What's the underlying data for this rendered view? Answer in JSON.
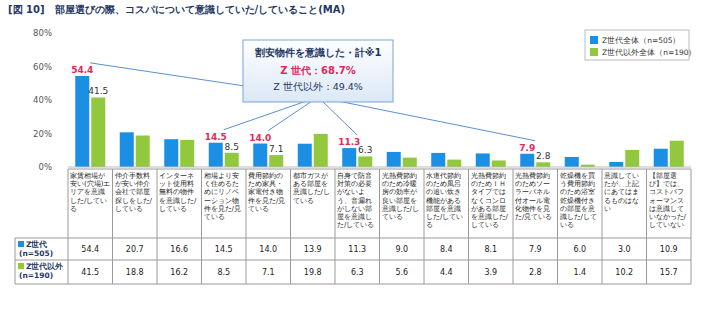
{
  "chart_data": {
    "type": "bar",
    "title": "[図 10]　部屋選びの際、コスパについて意識していた/していること(MA)",
    "categories": [
      "家賃相場が安い(穴場)エリアを意識した/している",
      "仲介手数料が安い仲介会社で部屋探しをした/している",
      "インターネット使用料無料の物件を意識した/している",
      "相場より安く住めるためにリノベーション物件を見た/見ている",
      "費用節約のため家具・家電付き物件を見た/見ている",
      "都市ガスがある部屋を意識した/している",
      "自身で防音対策の必要がないよう、音漏れがしない部屋を意識した/している",
      "光熱費節約のため冷暖房の効率が良い部屋を意識した/している",
      "水道代節約のため風呂の追い炊き機能がある部屋を意識した/している",
      "光熱費節約のためＩＨタイプではなくコンロがある部屋を意識した/している",
      "光熱費節約のためソーラーパネル付オール電化物件を見た/見ている",
      "乾燥機を買う費用節約のため浴室乾燥機付きの部屋を意識した/している",
      "意識していたが、上記にあてはまるものはない",
      "【部屋選び】では、コストパフォーマンスは意識していなかった/していない"
    ],
    "series": [
      {
        "name": "Z世代全体（n=505）",
        "table_label": "Z世代\n(n=505)",
        "color": "#1a8fe3",
        "values": [
          54.4,
          20.7,
          16.6,
          14.5,
          14.0,
          13.9,
          11.3,
          9.0,
          8.4,
          8.1,
          7.9,
          6.0,
          3.0,
          10.9
        ]
      },
      {
        "name": "Z世代以外全体（n=190）",
        "table_label": "Z世代以外\n(n=190)",
        "color": "#92c83e",
        "values": [
          41.5,
          18.8,
          16.2,
          8.5,
          7.1,
          19.8,
          6.3,
          5.6,
          4.4,
          3.9,
          2.8,
          1.4,
          10.2,
          15.7
        ]
      }
    ],
    "ylim": [
      0,
      80
    ],
    "yticks": [
      {
        "value": 0,
        "label": "0%"
      },
      {
        "value": 20,
        "label": "20%"
      },
      {
        "value": 40,
        "label": "40%"
      },
      {
        "value": 60,
        "label": "60%"
      },
      {
        "value": 80,
        "label": "80%"
      }
    ],
    "grid": false,
    "legend": "upper right",
    "callout": {
      "title": "割安物件を意識した・計※1",
      "lines": [
        "Z 世代：68.7%",
        "Z 世代以外：49.4%"
      ],
      "members": [
        0,
        3,
        4,
        6,
        10
      ]
    }
  }
}
